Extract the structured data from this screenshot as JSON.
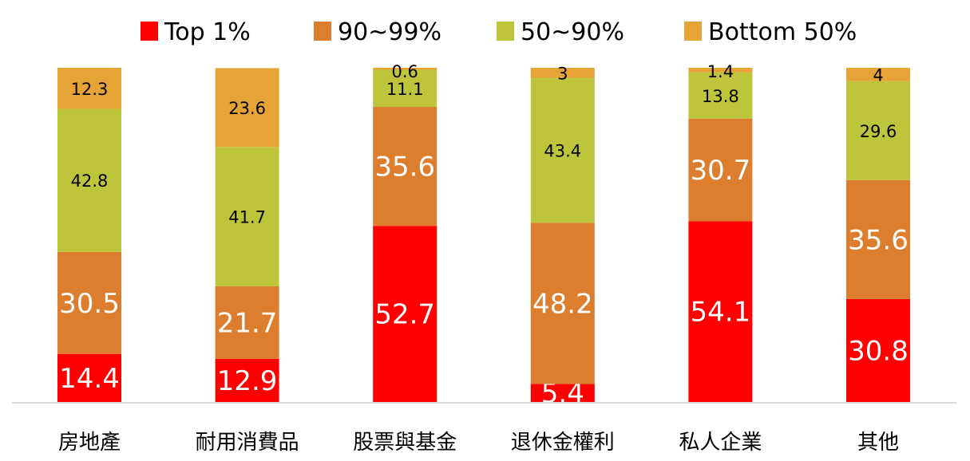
{
  "chart_data": {
    "type": "bar",
    "stacked": true,
    "normalized_percent": true,
    "categories": [
      "房地產",
      "耐用消費品",
      "股票與基金",
      "退休金權利",
      "私人企業",
      "其他"
    ],
    "series": [
      {
        "name": "Top 1%",
        "color": "#ff0000",
        "values": [
          14.4,
          12.9,
          52.7,
          5.4,
          54.1,
          30.8
        ]
      },
      {
        "name": "90~99%",
        "color": "#dd7e2e",
        "values": [
          30.5,
          21.7,
          35.6,
          48.2,
          30.7,
          35.6
        ]
      },
      {
        "name": "50~90%",
        "color": "#bfc53b",
        "values": [
          42.8,
          41.7,
          11.1,
          43.4,
          13.8,
          29.6
        ]
      },
      {
        "name": "Bottom 50%",
        "color": "#e6a436",
        "values": [
          12.3,
          23.6,
          0.6,
          3,
          1.4,
          4
        ]
      }
    ],
    "legend_position": "top",
    "grid": false,
    "ylim": [
      0,
      100
    ]
  }
}
